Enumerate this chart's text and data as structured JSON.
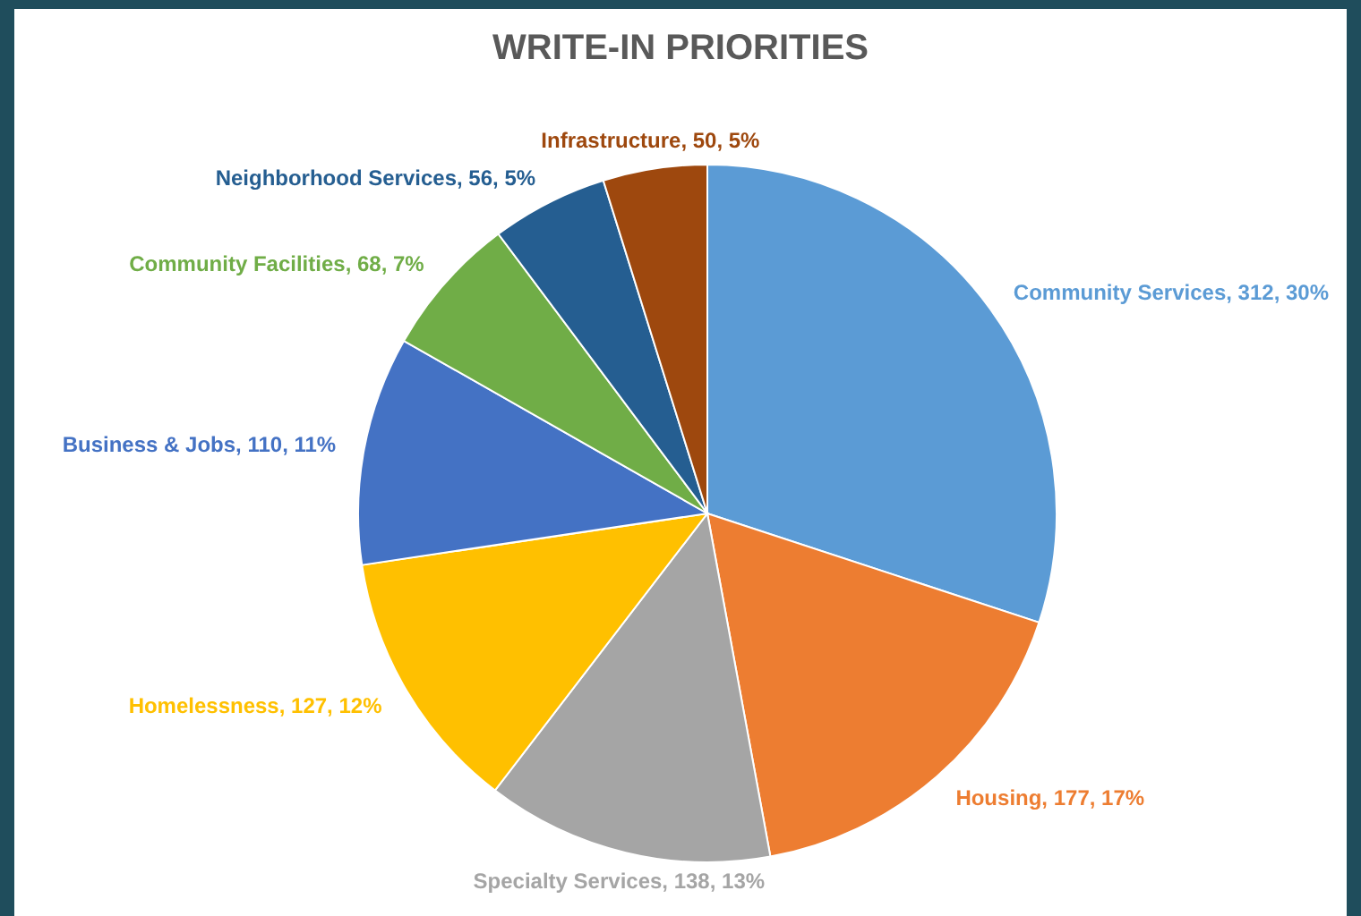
{
  "chart_data": {
    "type": "pie",
    "title": "WRITE-IN PRIORITIES",
    "categories": [
      "Community Services",
      "Housing",
      "Specialty Services",
      "Homelessness",
      "Business & Jobs",
      "Community Facilities",
      "Neighborhood Services",
      "Infrastructure"
    ],
    "values": [
      312,
      177,
      138,
      127,
      110,
      68,
      56,
      50
    ],
    "value_labels": [
      "312, 30%",
      "177, 17%",
      "138, 13%",
      "127, 12%",
      "110, 11%",
      "68, 7%",
      "56, 5%",
      "50, 5%"
    ],
    "colors": [
      "#5b9bd5",
      "#ed7d31",
      "#a5a5a5",
      "#ffc000",
      "#4472c4",
      "#70ad47",
      "#255e91",
      "#9e480e"
    ]
  }
}
